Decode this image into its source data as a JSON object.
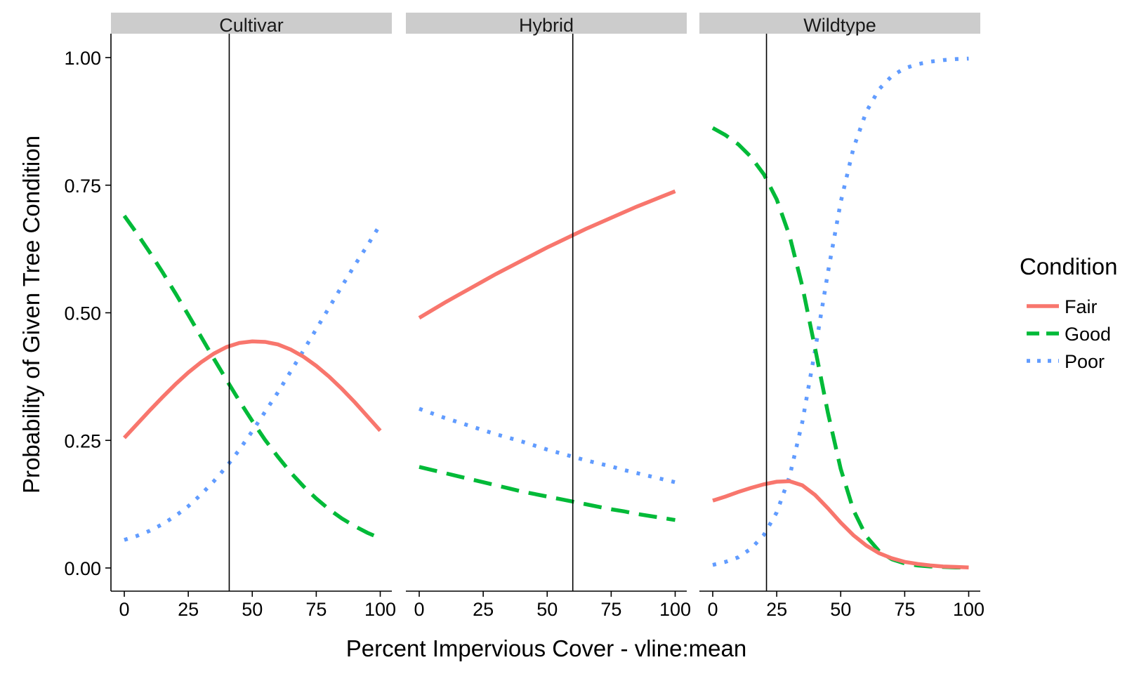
{
  "chart_data": {
    "type": "line",
    "xlabel": "Percent Impervious Cover - vline:mean",
    "ylabel": "Probability of Given Tree Condition",
    "xlim": [
      0,
      100
    ],
    "ylim": [
      0,
      1
    ],
    "x_ticks": [
      "0",
      "25",
      "50",
      "75",
      "100"
    ],
    "y_ticks": [
      "0.00",
      "0.25",
      "0.50",
      "0.75",
      "1.00"
    ],
    "legend": {
      "title": "Condition",
      "placement": "right",
      "entries": [
        {
          "name": "Fair",
          "color": "#F8766D",
          "dash": "solid"
        },
        {
          "name": "Good",
          "color": "#00BA38",
          "dash": "dashed"
        },
        {
          "name": "Poor",
          "color": "#619CFF",
          "dash": "dotted"
        }
      ]
    },
    "x": [
      0,
      5,
      10,
      15,
      20,
      25,
      30,
      35,
      40,
      45,
      50,
      55,
      60,
      65,
      70,
      75,
      80,
      85,
      90,
      95,
      100
    ],
    "panels": [
      {
        "title": "Cultivar",
        "vline": 41,
        "series": [
          {
            "name": "Fair",
            "values": [
              0.255,
              0.282,
              0.309,
              0.335,
              0.36,
              0.383,
              0.403,
              0.42,
              0.433,
              0.441,
              0.444,
              0.443,
              0.438,
              0.428,
              0.414,
              0.396,
              0.375,
              0.351,
              0.325,
              0.297,
              0.269
            ]
          },
          {
            "name": "Good",
            "values": [
              0.69,
              0.655,
              0.618,
              0.579,
              0.538,
              0.496,
              0.453,
              0.41,
              0.368,
              0.327,
              0.288,
              0.251,
              0.218,
              0.187,
              0.16,
              0.136,
              0.115,
              0.097,
              0.082,
              0.069,
              0.058
            ]
          },
          {
            "name": "Poor",
            "values": [
              0.055,
              0.063,
              0.073,
              0.086,
              0.102,
              0.121,
              0.144,
              0.17,
              0.199,
              0.232,
              0.268,
              0.306,
              0.344,
              0.385,
              0.426,
              0.468,
              0.51,
              0.552,
              0.593,
              0.632,
              0.673
            ]
          }
        ]
      },
      {
        "title": "Hybrid",
        "vline": 60,
        "series": [
          {
            "name": "Fair",
            "values": [
              0.49,
              0.505,
              0.52,
              0.534,
              0.548,
              0.562,
              0.576,
              0.589,
              0.602,
              0.615,
              0.628,
              0.64,
              0.652,
              0.664,
              0.675,
              0.686,
              0.697,
              0.708,
              0.718,
              0.728,
              0.738
            ]
          },
          {
            "name": "Good",
            "values": [
              0.198,
              0.192,
              0.186,
              0.18,
              0.174,
              0.168,
              0.162,
              0.156,
              0.15,
              0.145,
              0.14,
              0.135,
              0.13,
              0.125,
              0.12,
              0.115,
              0.111,
              0.106,
              0.102,
              0.098,
              0.094
            ]
          },
          {
            "name": "Poor",
            "values": [
              0.312,
              0.303,
              0.294,
              0.286,
              0.278,
              0.27,
              0.262,
              0.255,
              0.248,
              0.24,
              0.232,
              0.225,
              0.218,
              0.211,
              0.205,
              0.199,
              0.192,
              0.186,
              0.18,
              0.174,
              0.168
            ]
          }
        ]
      },
      {
        "title": "Wildtype",
        "vline": 21,
        "series": [
          {
            "name": "Fair",
            "values": [
              0.132,
              0.14,
              0.149,
              0.157,
              0.164,
              0.169,
              0.17,
              0.162,
              0.143,
              0.117,
              0.089,
              0.064,
              0.044,
              0.029,
              0.019,
              0.012,
              0.008,
              0.005,
              0.003,
              0.002,
              0.001
            ]
          },
          {
            "name": "Good",
            "values": [
              0.862,
              0.848,
              0.83,
              0.805,
              0.771,
              0.722,
              0.651,
              0.552,
              0.43,
              0.304,
              0.194,
              0.113,
              0.062,
              0.033,
              0.017,
              0.009,
              0.005,
              0.003,
              0.002,
              0.001,
              0.001
            ]
          },
          {
            "name": "Poor",
            "values": [
              0.006,
              0.012,
              0.021,
              0.038,
              0.065,
              0.109,
              0.179,
              0.286,
              0.427,
              0.579,
              0.717,
              0.823,
              0.894,
              0.938,
              0.964,
              0.979,
              0.987,
              0.992,
              0.995,
              0.997,
              0.998
            ]
          }
        ]
      }
    ]
  }
}
